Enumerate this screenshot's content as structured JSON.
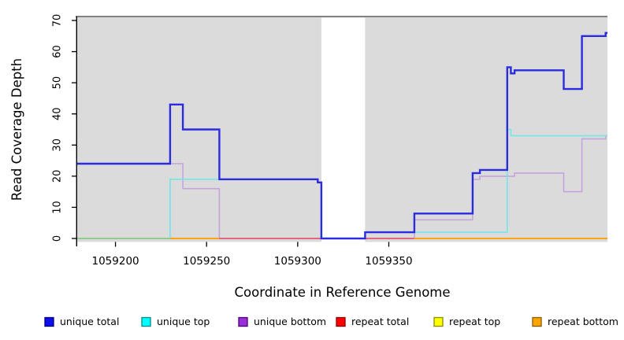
{
  "chart_data": {
    "type": "line",
    "step": true,
    "title": "",
    "xlabel": "Coordinate in Reference Genome",
    "ylabel": "Read Coverage Depth",
    "xlim": [
      1059179,
      1059470
    ],
    "ylim": [
      0,
      70
    ],
    "x_ticks": [
      1059200,
      1059250,
      1059300,
      1059350
    ],
    "y_ticks": [
      0,
      10,
      20,
      30,
      40,
      50,
      60,
      70
    ],
    "grid": false,
    "legend_position": "bottom",
    "plot_bg_color": "#DBDBDB",
    "frame_top_color": "#5A5A5A",
    "axis_color": "#000000",
    "masked_region": {
      "x0": 1059313,
      "x1": 1059337,
      "color": "#FFFFFF"
    },
    "series": [
      {
        "name": "unique total",
        "line_color": "#2B2BDF",
        "line_width": 2.4,
        "legend_fill": "#0F0FE8",
        "legend_border": "#00008B",
        "steps": [
          [
            1059179,
            24
          ],
          [
            1059230,
            43
          ],
          [
            1059237,
            35
          ],
          [
            1059257,
            19
          ],
          [
            1059311,
            18
          ],
          [
            1059313,
            0
          ],
          [
            1059337,
            2
          ],
          [
            1059364,
            8
          ],
          [
            1059396,
            21
          ],
          [
            1059400,
            22
          ],
          [
            1059415,
            55
          ],
          [
            1059417,
            53
          ],
          [
            1059419,
            54
          ],
          [
            1059446,
            48
          ],
          [
            1059456,
            65
          ],
          [
            1059469,
            66
          ]
        ]
      },
      {
        "name": "unique top",
        "line_color": "#74E6E8",
        "line_width": 1.6,
        "legend_fill": "#00FFFF",
        "legend_border": "#008B8B",
        "steps": [
          [
            1059179,
            0
          ],
          [
            1059230,
            19
          ],
          [
            1059311,
            18
          ],
          [
            1059313,
            0
          ],
          [
            1059337,
            2
          ],
          [
            1059415,
            35
          ],
          [
            1059417,
            33
          ]
        ]
      },
      {
        "name": "unique bottom",
        "line_color": "#C7A3DD",
        "line_width": 1.6,
        "legend_fill": "#9B30D9",
        "legend_border": "#4B0082",
        "steps": [
          [
            1059179,
            24
          ],
          [
            1059237,
            16
          ],
          [
            1059257,
            0
          ],
          [
            1059364,
            6
          ],
          [
            1059396,
            19
          ],
          [
            1059400,
            20
          ],
          [
            1059419,
            21
          ],
          [
            1059446,
            15
          ],
          [
            1059456,
            32
          ],
          [
            1059469,
            33
          ]
        ]
      },
      {
        "name": "repeat total",
        "line_color": "#E05C7E",
        "line_width": 1.6,
        "legend_fill": "#FF0000",
        "legend_border": "#8B0000",
        "steps": [
          [
            1059179,
            0
          ]
        ]
      },
      {
        "name": "repeat top",
        "line_color": "#EDED60",
        "line_width": 1.6,
        "legend_fill": "#FFFF00",
        "legend_border": "#8B8B00",
        "steps": [
          [
            1059179,
            0
          ]
        ]
      },
      {
        "name": "repeat bottom",
        "line_color": "#FFA010",
        "line_width": 1.6,
        "legend_fill": "#FFA500",
        "legend_border": "#8B5A00",
        "steps": [
          [
            1059179,
            0
          ]
        ]
      }
    ],
    "baseline_overlay_segments": [
      {
        "x0": 1059179,
        "x1": 1059230,
        "color": "#8CCB8C"
      },
      {
        "x0": 1059230,
        "x1": 1059257,
        "color": "#FFA010"
      },
      {
        "x0": 1059257,
        "x1": 1059313,
        "color": "#E05C7E"
      },
      {
        "x0": 1059337,
        "x1": 1059364,
        "color": "#E05C7E"
      },
      {
        "x0": 1059364,
        "x1": 1059470,
        "color": "#FFA010"
      }
    ]
  },
  "layout_note_labels": {
    "y_axis_title": "Read Coverage Depth",
    "x_axis_title": "Coordinate in Reference Genome"
  }
}
